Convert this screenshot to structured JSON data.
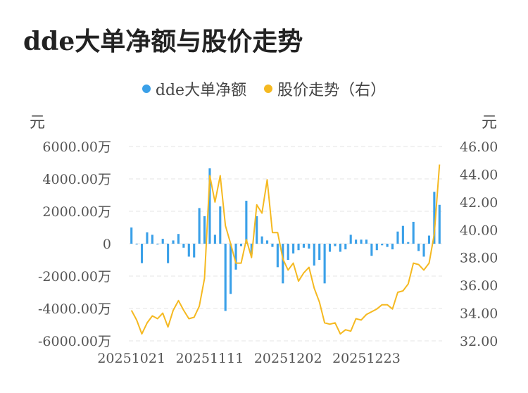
{
  "chart_data": {
    "type": "bar+line",
    "title": "dde大单净额与股价走势",
    "legend": {
      "placement": "top-center"
    },
    "grid": true,
    "y_left": {
      "unit": "元",
      "ticks": [
        "6000.00万",
        "4000.00万",
        "2000.00万",
        "0",
        "-2000.00万",
        "-4000.00万",
        "-6000.00万"
      ],
      "range": [
        -6000,
        6000
      ]
    },
    "y_right": {
      "unit": "元",
      "ticks": [
        "46.00",
        "44.00",
        "42.00",
        "40.00",
        "38.00",
        "36.00",
        "34.00",
        "32.00"
      ],
      "range": [
        32,
        46
      ]
    },
    "x_tick_labels": [
      {
        "label": "20251021",
        "index": 0
      },
      {
        "label": "20251111",
        "index": 15
      },
      {
        "label": "20251202",
        "index": 30
      },
      {
        "label": "20251223",
        "index": 45
      }
    ],
    "series": [
      {
        "name": "dde大单净额",
        "axis": "left",
        "type": "bar",
        "color": "#3aa0e8",
        "values": [
          1000,
          -50,
          -1200,
          700,
          550,
          -50,
          300,
          -1200,
          200,
          600,
          -250,
          -800,
          -850,
          2200,
          1700,
          4650,
          550,
          2300,
          -4150,
          -3100,
          -1600,
          -150,
          2650,
          -650,
          1700,
          450,
          200,
          -200,
          -1450,
          -2450,
          -1000,
          -600,
          -400,
          -250,
          -300,
          -1350,
          -1000,
          -2450,
          -500,
          -150,
          -500,
          -350,
          550,
          250,
          250,
          250,
          -750,
          -400,
          -100,
          -200,
          -350,
          750,
          1100,
          100,
          1350,
          -450,
          -800,
          500,
          3200,
          2400
        ]
      },
      {
        "name": "股价走势（右）",
        "axis": "right",
        "type": "line",
        "color": "#f5b921",
        "values": [
          34.2,
          33.5,
          32.5,
          33.3,
          33.8,
          33.6,
          34.0,
          33.0,
          34.2,
          34.9,
          34.2,
          33.6,
          33.7,
          34.5,
          36.5,
          43.9,
          42.0,
          43.9,
          40.3,
          39.0,
          37.6,
          37.6,
          39.3,
          38.0,
          41.8,
          41.2,
          43.6,
          39.8,
          39.8,
          37.9,
          37.1,
          37.6,
          36.3,
          36.9,
          37.3,
          35.8,
          34.8,
          33.3,
          33.2,
          33.3,
          32.5,
          32.8,
          32.7,
          33.6,
          33.5,
          33.9,
          34.1,
          34.3,
          34.6,
          34.6,
          34.3,
          35.5,
          35.6,
          36.1,
          37.6,
          37.5,
          37.1,
          37.6,
          39.7,
          44.7
        ]
      }
    ]
  }
}
